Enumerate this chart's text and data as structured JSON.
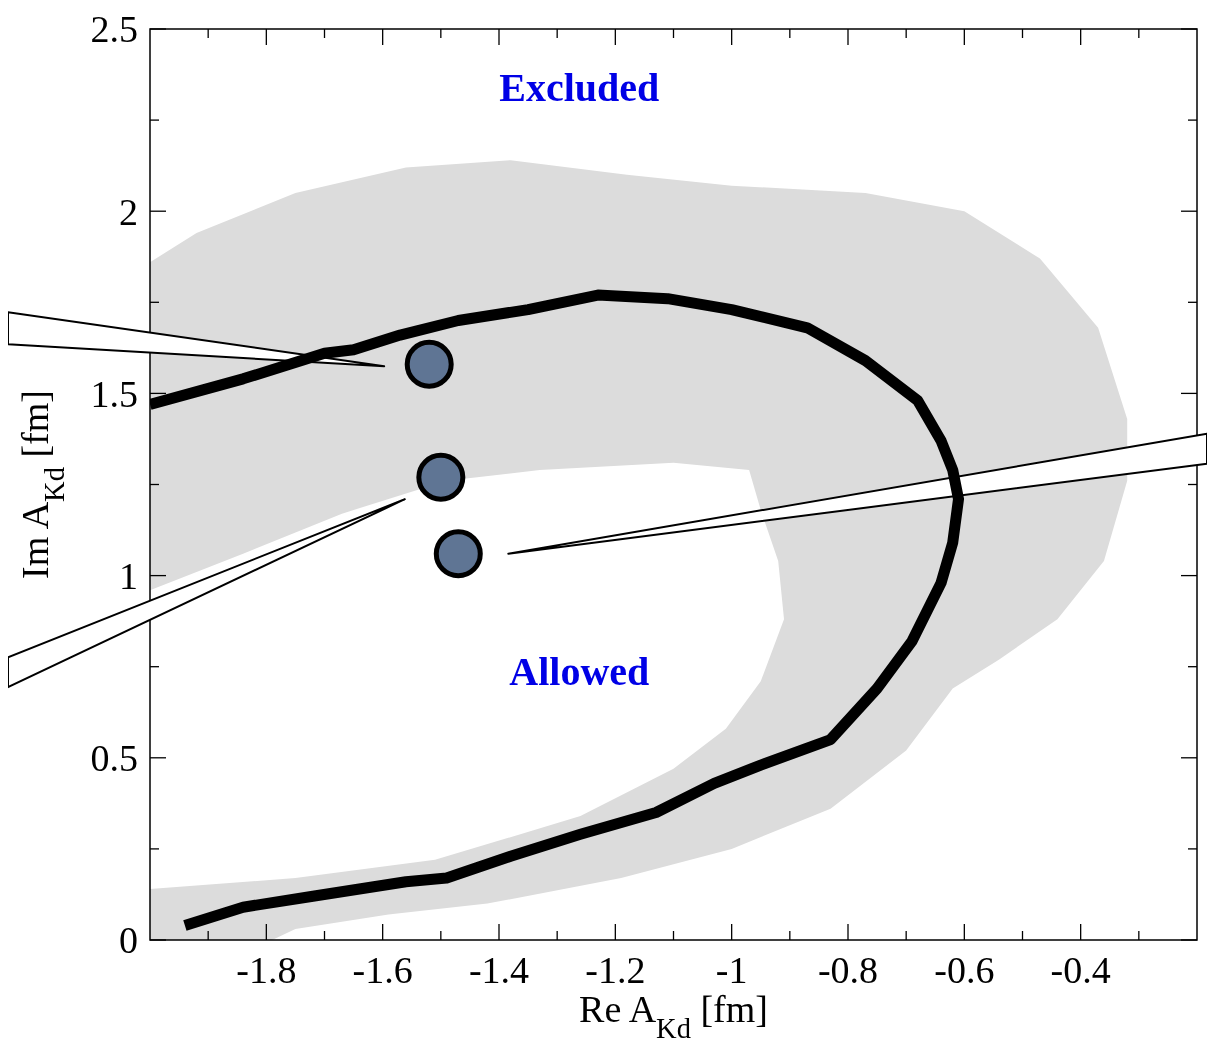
{
  "chart_data": {
    "type": "scatter",
    "xlabel": "Re A$_{Kd}$ [fm]",
    "ylabel": "Im A$_{Kd}$ [fm]",
    "xlim": [
      -2,
      -0.2
    ],
    "ylim": [
      0,
      2.5
    ],
    "xticks": [
      {
        "value": -1.9,
        "label": null
      },
      -1.8,
      {
        "value": -1.7,
        "label": null
      },
      -1.6,
      {
        "value": -1.5,
        "label": null
      },
      -1.4,
      {
        "value": -1.3,
        "label": null
      },
      -1.2,
      {
        "value": -1.1,
        "label": null
      },
      -1,
      {
        "value": -0.9,
        "label": null
      },
      -0.8,
      {
        "value": -0.7,
        "label": null
      },
      -0.6,
      {
        "value": -0.5,
        "label": null
      },
      -0.4,
      {
        "value": -0.3,
        "label": null
      }
    ],
    "yticks": [
      0,
      {
        "value": 0.25,
        "label": null
      },
      0.5,
      {
        "value": 0.75,
        "label": null
      },
      1,
      {
        "value": 1.25,
        "label": null
      },
      1.5,
      {
        "value": 1.75,
        "label": null
      },
      2,
      {
        "value": 2.25,
        "label": null
      },
      2.5
    ],
    "grid": false,
    "legend": false,
    "annotations": [
      "Excluded",
      "Allowed"
    ],
    "series": [
      {
        "type": "area",
        "color": "#dcdcdc",
        "x": [
          -2,
          -1.92,
          -1.75,
          -1.56,
          -1.38,
          -1.18,
          -1.0,
          -0.77,
          -0.6,
          -0.47,
          -0.37,
          -0.32,
          -0.32,
          -0.36,
          -0.44,
          -0.54,
          -0.62,
          -0.7,
          -0.83,
          -1.0,
          -1.19,
          -1.42,
          -1.59,
          -1.75,
          -1.79,
          -2,
          -2,
          -1.75,
          -1.51,
          -1.26,
          -1.1,
          -1.01,
          -0.95,
          -0.91,
          -0.92,
          -0.95,
          -0.97,
          -1.1,
          -1.33,
          -1.49,
          -1.67,
          -1.84,
          -2
        ],
        "values": [
          1.86,
          1.94,
          2.05,
          2.12,
          2.14,
          2.1,
          2.07,
          2.05,
          2.0,
          1.87,
          1.68,
          1.43,
          1.26,
          1.04,
          0.88,
          0.77,
          0.69,
          0.52,
          0.36,
          0.25,
          0.17,
          0.1,
          0.07,
          0.03,
          0,
          0,
          0.14,
          0.17,
          0.22,
          0.34,
          0.47,
          0.58,
          0.71,
          0.88,
          1.04,
          1.18,
          1.29,
          1.31,
          1.29,
          1.26,
          1.17,
          1.06,
          0.96
        ]
      },
      {
        "type": "line",
        "color": "#000000",
        "line_style": "solid",
        "marker": "none",
        "x": [
          -2.0,
          -1.84,
          -1.7,
          -1.65,
          -1.57,
          -1.47,
          -1.35,
          -1.23,
          -1.11,
          -1.0,
          -0.87,
          -0.77,
          -0.68,
          -0.64,
          -0.62,
          -0.61,
          -0.62,
          -0.64,
          -0.69,
          -0.75,
          -0.83,
          -0.95,
          -1.03,
          -1.13,
          -1.26,
          -1.38,
          -1.49,
          -1.56,
          -1.72,
          -1.84,
          -1.94
        ],
        "values": [
          1.47,
          1.54,
          1.61,
          1.62,
          1.66,
          1.7,
          1.73,
          1.77,
          1.76,
          1.73,
          1.68,
          1.59,
          1.48,
          1.37,
          1.29,
          1.21,
          1.09,
          0.98,
          0.82,
          0.69,
          0.55,
          0.48,
          0.43,
          0.35,
          0.29,
          0.23,
          0.17,
          0.16,
          0.12,
          0.09,
          0.04
        ]
      },
      {
        "color": "#5f7594",
        "marker": "circle",
        "x": [
          -1.52,
          -1.5,
          -1.47
        ],
        "values": [
          1.58,
          1.27,
          1.06
        ]
      }
    ]
  }
}
